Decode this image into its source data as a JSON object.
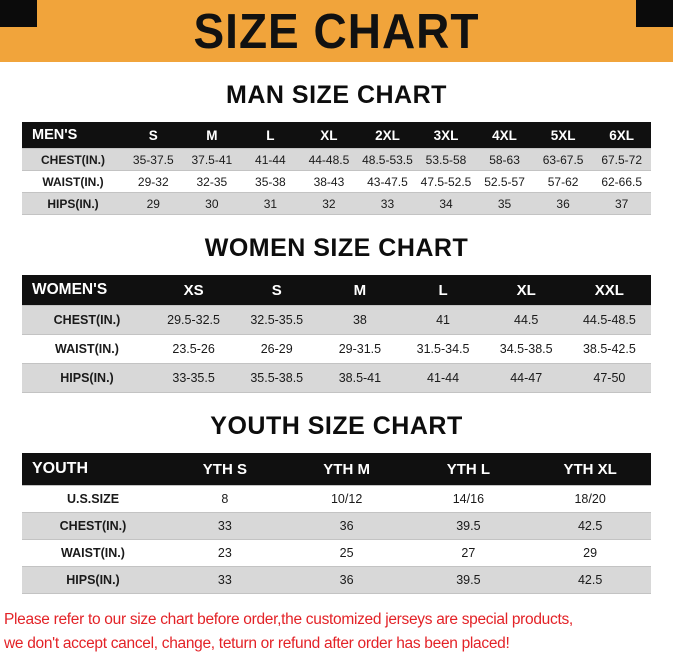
{
  "title": "SIZE CHART",
  "colors": {
    "banner_bg": "#f1a43b",
    "banner_text": "#111111",
    "table_header_bg": "#101010",
    "table_header_text": "#ffffff",
    "row_alt_bg": "#d8d8d8",
    "footer_text": "#e32227"
  },
  "sections": [
    {
      "heading": "MAN SIZE CHART",
      "table": {
        "header": [
          "MEN'S",
          "S",
          "M",
          "L",
          "XL",
          "2XL",
          "3XL",
          "4XL",
          "5XL",
          "6XL"
        ],
        "rows": [
          [
            "CHEST(IN.)",
            "35-37.5",
            "37.5-41",
            "41-44",
            "44-48.5",
            "48.5-53.5",
            "53.5-58",
            "58-63",
            "63-67.5",
            "67.5-72"
          ],
          [
            "WAIST(IN.)",
            "29-32",
            "32-35",
            "35-38",
            "38-43",
            "43-47.5",
            "47.5-52.5",
            "52.5-57",
            "57-62",
            "62-66.5"
          ],
          [
            "HIPS(IN.)",
            "29",
            "30",
            "31",
            "32",
            "33",
            "34",
            "35",
            "36",
            "37"
          ]
        ]
      }
    },
    {
      "heading": "WOMEN SIZE CHART",
      "table": {
        "header": [
          "WOMEN'S",
          "XS",
          "S",
          "M",
          "L",
          "XL",
          "XXL"
        ],
        "rows": [
          [
            "CHEST(IN.)",
            "29.5-32.5",
            "32.5-35.5",
            "38",
            "41",
            "44.5",
            "44.5-48.5"
          ],
          [
            "WAIST(IN.)",
            "23.5-26",
            "26-29",
            "29-31.5",
            "31.5-34.5",
            "34.5-38.5",
            "38.5-42.5"
          ],
          [
            "HIPS(IN.)",
            "33-35.5",
            "35.5-38.5",
            "38.5-41",
            "41-44",
            "44-47",
            "47-50"
          ]
        ]
      }
    },
    {
      "heading": "YOUTH SIZE CHART",
      "table": {
        "header": [
          "YOUTH",
          "YTH S",
          "YTH M",
          "YTH L",
          "YTH XL"
        ],
        "rows": [
          [
            "U.S.SIZE",
            "8",
            "10/12",
            "14/16",
            "18/20"
          ],
          [
            "CHEST(IN.)",
            "33",
            "36",
            "39.5",
            "42.5"
          ],
          [
            "WAIST(IN.)",
            "23",
            "25",
            "27",
            "29"
          ],
          [
            "HIPS(IN.)",
            "33",
            "36",
            "39.5",
            "42.5"
          ]
        ]
      }
    }
  ],
  "footer": {
    "line1": "Please refer to our size chart before order,the customized jerseys are special products,",
    "line2": "we don't accept cancel, change, teturn or refund after order has been placed!"
  }
}
